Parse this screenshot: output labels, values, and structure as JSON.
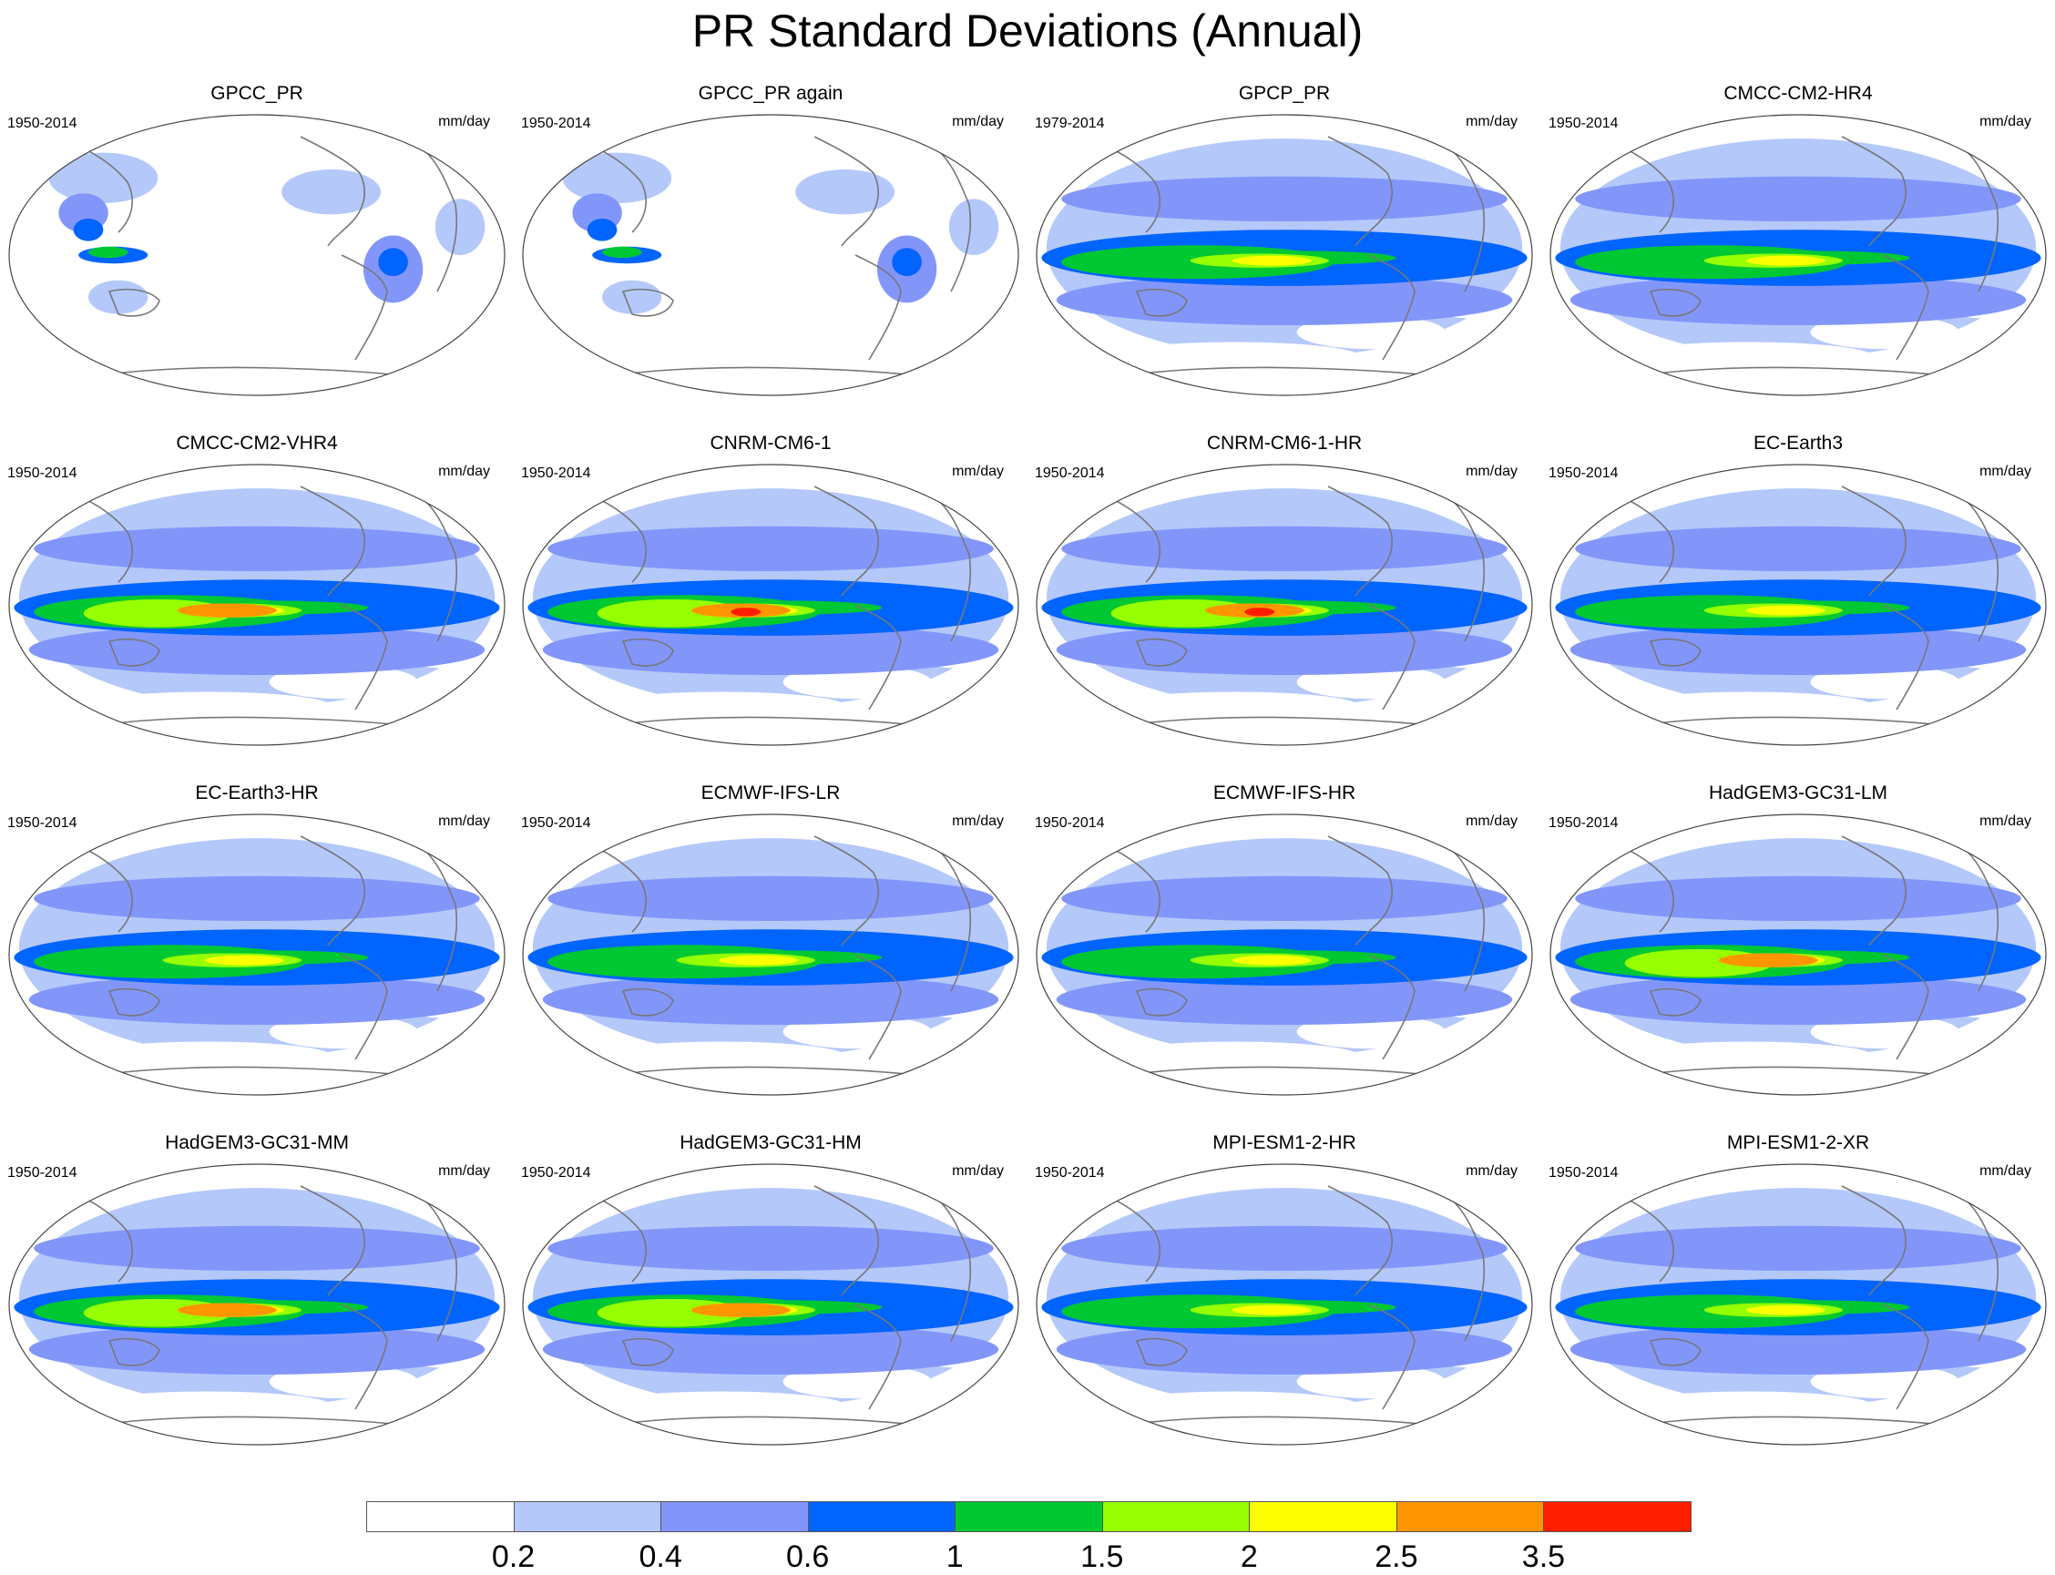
{
  "title": "PR Standard Deviations (Annual)",
  "units": "mm/day",
  "panels": [
    {
      "name": "GPCC_PR",
      "period": "1950-2014",
      "type": "obs-land"
    },
    {
      "name": "GPCC_PR again",
      "period": "1950-2014",
      "type": "obs-land"
    },
    {
      "name": "GPCP_PR",
      "period": "1979-2014",
      "type": "obs-global"
    },
    {
      "name": "CMCC-CM2-HR4",
      "period": "1950-2014",
      "type": "model"
    },
    {
      "name": "CMCC-CM2-VHR4",
      "period": "1950-2014",
      "type": "model-strong"
    },
    {
      "name": "CNRM-CM6-1",
      "period": "1950-2014",
      "type": "model-peak"
    },
    {
      "name": "CNRM-CM6-1-HR",
      "period": "1950-2014",
      "type": "model-peak"
    },
    {
      "name": "EC-Earth3",
      "period": "1950-2014",
      "type": "model"
    },
    {
      "name": "EC-Earth3-HR",
      "period": "1950-2014",
      "type": "model"
    },
    {
      "name": "ECMWF-IFS-LR",
      "period": "1950-2014",
      "type": "model"
    },
    {
      "name": "ECMWF-IFS-HR",
      "period": "1950-2014",
      "type": "model"
    },
    {
      "name": "HadGEM3-GC31-LM",
      "period": "1950-2014",
      "type": "model-strong"
    },
    {
      "name": "HadGEM3-GC31-MM",
      "period": "1950-2014",
      "type": "model-strong"
    },
    {
      "name": "HadGEM3-GC31-HM",
      "period": "1950-2014",
      "type": "model-strong"
    },
    {
      "name": "MPI-ESM1-2-HR",
      "period": "1950-2014",
      "type": "model"
    },
    {
      "name": "MPI-ESM1-2-XR",
      "period": "1950-2014",
      "type": "model"
    }
  ],
  "colorbar": {
    "colors": [
      "#ffffff",
      "#b4c8fa",
      "#8296fa",
      "#0064ff",
      "#00c832",
      "#96ff00",
      "#ffff00",
      "#ff9600",
      "#ff1e00"
    ],
    "labels": [
      "0.2",
      "0.4",
      "0.6",
      "1",
      "1.5",
      "2",
      "2.5",
      "3.5"
    ]
  }
}
